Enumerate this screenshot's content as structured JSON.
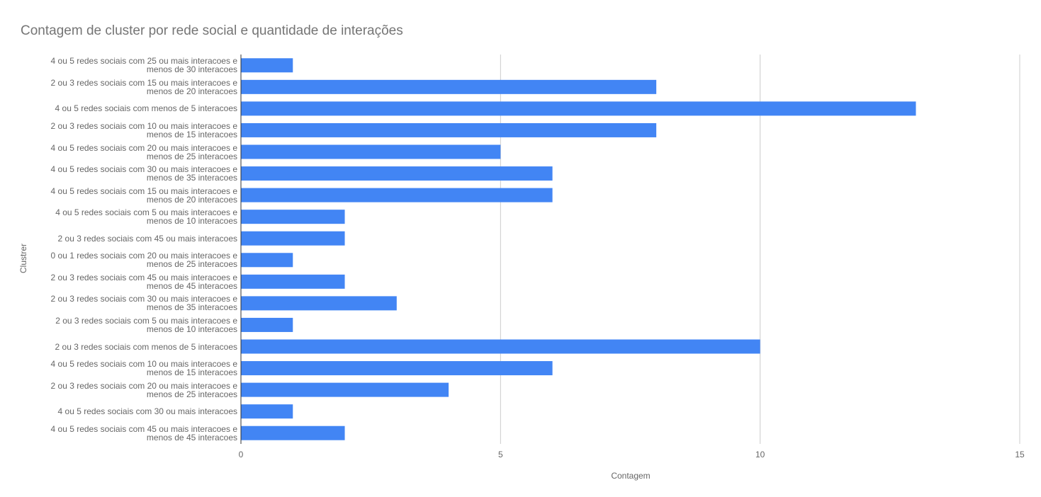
{
  "chart_data": {
    "type": "hbar",
    "title": "Contagem de cluster por rede social e quantidade de interações",
    "x_label": "Contagem",
    "y_label": "Clustrer",
    "categories": [
      "4 ou 5 redes sociais com 25 ou mais interacoes e\nmenos de 30 interacoes",
      "2 ou 3 redes sociais com 15 ou mais interacoes e\nmenos de 20 interacoes",
      "4 ou 5 redes sociais com menos de 5 interacoes",
      "2 ou 3 redes sociais com 10 ou mais interacoes e\nmenos de 15 interacoes",
      "4 ou 5 redes sociais com 20 ou mais interacoes e\nmenos de 25 interacoes",
      "4 ou 5 redes sociais com 30 ou mais interacoes e\nmenos de 35 interacoes",
      "4 ou 5 redes sociais com 15 ou mais interacoes e\nmenos de 20 interacoes",
      "4 ou 5 redes sociais com 5 ou mais interacoes e\nmenos de 10 interacoes",
      "2 ou 3 redes sociais com 45 ou mais interacoes",
      "0 ou 1 redes sociais com 20 ou mais interacoes e\nmenos de 25 interacoes",
      "2 ou 3 redes sociais com 45 ou mais interacoes e\nmenos de 45 interacoes",
      "2 ou 3 redes sociais com 30 ou mais interacoes e\nmenos de 35 interacoes",
      "2 ou 3 redes sociais com 5 ou mais interacoes e\nmenos de 10 interacoes",
      "2 ou 3 redes sociais com menos de 5 interacoes",
      "4 ou 5 redes sociais com 10 ou mais interacoes e\nmenos de 15 interacoes",
      "2 ou 3 redes sociais com 20 ou mais interacoes e\nmenos de 25 interacoes",
      "4 ou 5 redes sociais com 30 ou mais interacoes",
      "4 ou 5 redes sociais com 45 ou mais interacoes e\nmenos de 45 interacoes"
    ],
    "values": [
      1,
      8,
      13,
      8,
      5,
      6,
      6,
      2,
      2,
      1,
      2,
      3,
      1,
      10,
      6,
      4,
      1,
      2
    ],
    "color": "#4285f4",
    "xlim": [
      0,
      15
    ],
    "xticks": [
      0,
      5,
      10,
      15
    ],
    "grid": true
  }
}
